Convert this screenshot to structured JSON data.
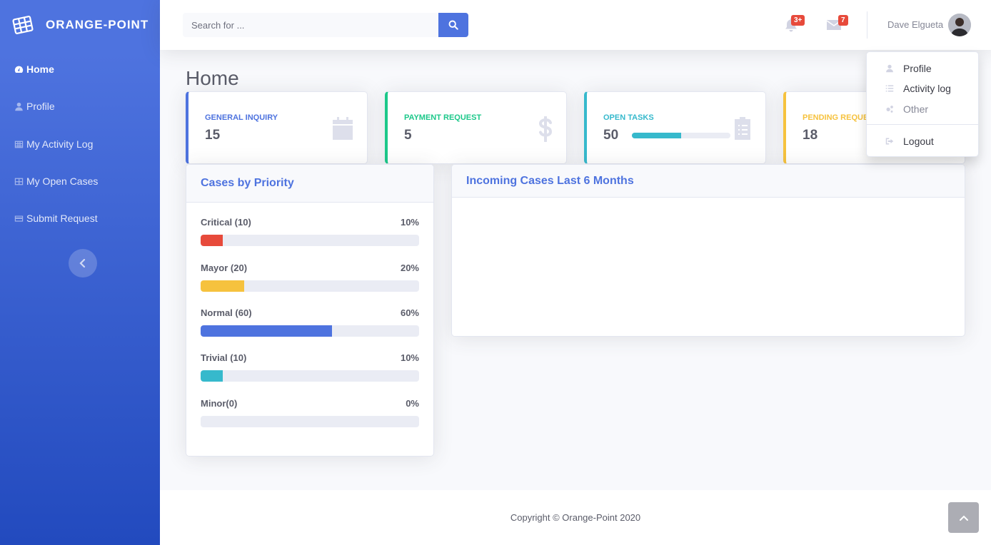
{
  "brand": {
    "name": "ORANGE-POINT"
  },
  "sidebar": {
    "items": [
      {
        "label": "Home",
        "icon": "tachometer-icon"
      },
      {
        "label": "Profile",
        "icon": "user-icon"
      },
      {
        "label": "My Activity Log",
        "icon": "table-icon"
      },
      {
        "label": "My Open Cases",
        "icon": "table-icon"
      },
      {
        "label": "Submit Request",
        "icon": "credit-card-icon"
      }
    ]
  },
  "topbar": {
    "search_placeholder": "Search for ...",
    "alerts_badge": "3+",
    "messages_badge": "7",
    "user_name": "Dave Elgueta"
  },
  "page": {
    "title": "Home"
  },
  "stats": [
    {
      "label": "GENERAL INQUIRY",
      "value": "15",
      "color": "#4e73df"
    },
    {
      "label": "PAYMENT REQUEST",
      "value": "5",
      "color": "#1cc88a"
    },
    {
      "label": "OPEN TASKS",
      "value": "50",
      "color": "#36b9cc",
      "progress": 50
    },
    {
      "label": "PENDING REQUESTS",
      "value": "18",
      "color": "#f6c23e"
    }
  ],
  "priority": {
    "title": "Cases by Priority",
    "rows": [
      {
        "label": "Critical (10)",
        "percent_label": "10%",
        "percent": 10,
        "color": "#e74a3b"
      },
      {
        "label": "Mayor (20)",
        "percent_label": "20%",
        "percent": 20,
        "color": "#f6c23e"
      },
      {
        "label": "Normal (60)",
        "percent_label": "60%",
        "percent": 60,
        "color": "#4e73df"
      },
      {
        "label": "Trivial (10)",
        "percent_label": "10%",
        "percent": 10,
        "color": "#36b9cc"
      },
      {
        "label": "Minor(0)",
        "percent_label": "0%",
        "percent": 0,
        "color": "#858796"
      }
    ]
  },
  "incoming": {
    "title": "Incoming Cases Last 6 Months"
  },
  "user_menu": {
    "profile": "Profile",
    "activity_log": "Activity log",
    "other": "Other",
    "logout": "Logout"
  },
  "footer": {
    "copyright": "Copyright © Orange-Point 2020"
  }
}
